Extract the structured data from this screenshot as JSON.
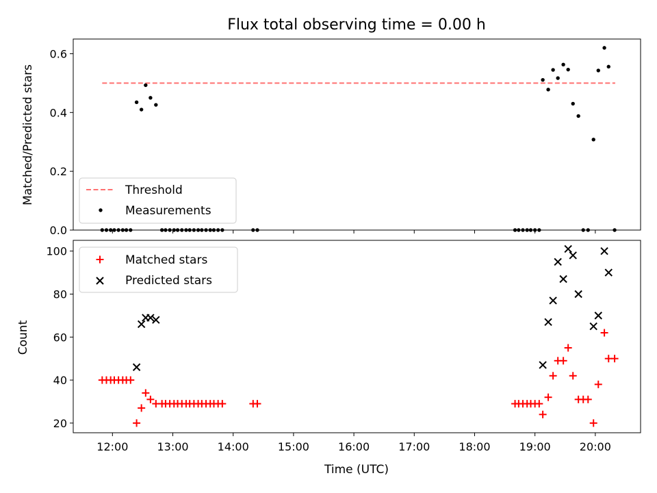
{
  "chart_data": [
    {
      "type": "scatter",
      "title": "Flux total observing time = 0.00 h",
      "xlabel": "",
      "ylabel": "Matched/Predicted stars",
      "xlim": [
        11.35,
        20.75
      ],
      "ylim": [
        0.0,
        0.65
      ],
      "yticks": [
        0.0,
        0.2,
        0.4,
        0.6
      ],
      "ytick_labels": [
        "0.0",
        "0.2",
        "0.4",
        "0.6"
      ],
      "legend_position": "lower-left",
      "threshold": {
        "name": "Threshold",
        "value": 0.5,
        "x": [
          11.83,
          20.33
        ],
        "color": "#ff7070",
        "style": "dashed"
      },
      "series": [
        {
          "name": "Measurements",
          "marker": "dot",
          "color": "#000000",
          "x": [
            11.83,
            11.9,
            11.97,
            12.03,
            12.1,
            12.17,
            12.23,
            12.3,
            12.4,
            12.48,
            12.55,
            12.63,
            12.72,
            12.82,
            12.88,
            12.95,
            13.02,
            13.08,
            13.15,
            13.22,
            13.28,
            13.35,
            13.42,
            13.48,
            13.55,
            13.62,
            13.68,
            13.75,
            13.82,
            14.33,
            14.4,
            18.67,
            18.73,
            18.8,
            18.87,
            18.93,
            19.0,
            19.07,
            19.13,
            19.22,
            19.3,
            19.38,
            19.47,
            19.55,
            19.63,
            19.72,
            19.8,
            19.88,
            19.97,
            20.05,
            20.15,
            20.22,
            20.32
          ],
          "y": [
            0.0,
            0.0,
            0.0,
            0.0,
            0.0,
            0.0,
            0.0,
            0.0,
            0.435,
            0.41,
            0.493,
            0.45,
            0.426,
            0.0,
            0.0,
            0.0,
            0.0,
            0.0,
            0.0,
            0.0,
            0.0,
            0.0,
            0.0,
            0.0,
            0.0,
            0.0,
            0.0,
            0.0,
            0.0,
            0.0,
            0.0,
            0.0,
            0.0,
            0.0,
            0.0,
            0.0,
            0.0,
            0.0,
            0.511,
            0.478,
            0.545,
            0.517,
            0.563,
            0.546,
            0.43,
            0.388,
            0.0,
            0.0,
            0.308,
            0.543,
            0.62,
            0.556,
            0.0
          ]
        }
      ]
    },
    {
      "type": "scatter",
      "title": "",
      "xlabel": "Time (UTC)",
      "ylabel": "Count",
      "xlim": [
        11.35,
        20.75
      ],
      "ylim": [
        15.5,
        105
      ],
      "xticks": [
        12,
        13,
        14,
        15,
        16,
        17,
        18,
        19,
        20
      ],
      "xtick_labels": [
        "12:00",
        "13:00",
        "14:00",
        "15:00",
        "16:00",
        "17:00",
        "18:00",
        "19:00",
        "20:00"
      ],
      "yticks": [
        20,
        40,
        60,
        80,
        100
      ],
      "ytick_labels": [
        "20",
        "40",
        "60",
        "80",
        "100"
      ],
      "legend_position": "upper-left",
      "series": [
        {
          "name": "Matched stars",
          "marker": "plus",
          "color": "#ff0000",
          "x": [
            11.83,
            11.9,
            11.97,
            12.03,
            12.1,
            12.17,
            12.23,
            12.3,
            12.4,
            12.48,
            12.55,
            12.63,
            12.72,
            12.82,
            12.88,
            12.95,
            13.02,
            13.08,
            13.15,
            13.22,
            13.28,
            13.35,
            13.42,
            13.48,
            13.55,
            13.62,
            13.68,
            13.75,
            13.82,
            14.33,
            14.4,
            18.67,
            18.73,
            18.8,
            18.87,
            18.93,
            19.0,
            19.07,
            19.13,
            19.22,
            19.3,
            19.38,
            19.47,
            19.55,
            19.63,
            19.72,
            19.8,
            19.88,
            19.97,
            20.05,
            20.15,
            20.22,
            20.32
          ],
          "y": [
            40,
            40,
            40,
            40,
            40,
            40,
            40,
            40,
            20,
            27,
            34,
            31,
            29,
            29,
            29,
            29,
            29,
            29,
            29,
            29,
            29,
            29,
            29,
            29,
            29,
            29,
            29,
            29,
            29,
            29,
            29,
            29,
            29,
            29,
            29,
            29,
            29,
            29,
            24,
            32,
            42,
            49,
            49,
            55,
            42,
            31,
            31,
            31,
            20,
            38,
            62,
            50,
            50
          ]
        },
        {
          "name": "Predicted stars",
          "marker": "x",
          "color": "#000000",
          "x": [
            12.4,
            12.48,
            12.55,
            12.63,
            12.72,
            19.13,
            19.22,
            19.3,
            19.38,
            19.47,
            19.55,
            19.63,
            19.72,
            19.97,
            20.05,
            20.15,
            20.22
          ],
          "y": [
            46,
            66,
            69,
            69,
            68,
            47,
            67,
            77,
            95,
            87,
            101,
            98,
            80,
            65,
            70,
            100,
            90
          ]
        }
      ]
    }
  ]
}
